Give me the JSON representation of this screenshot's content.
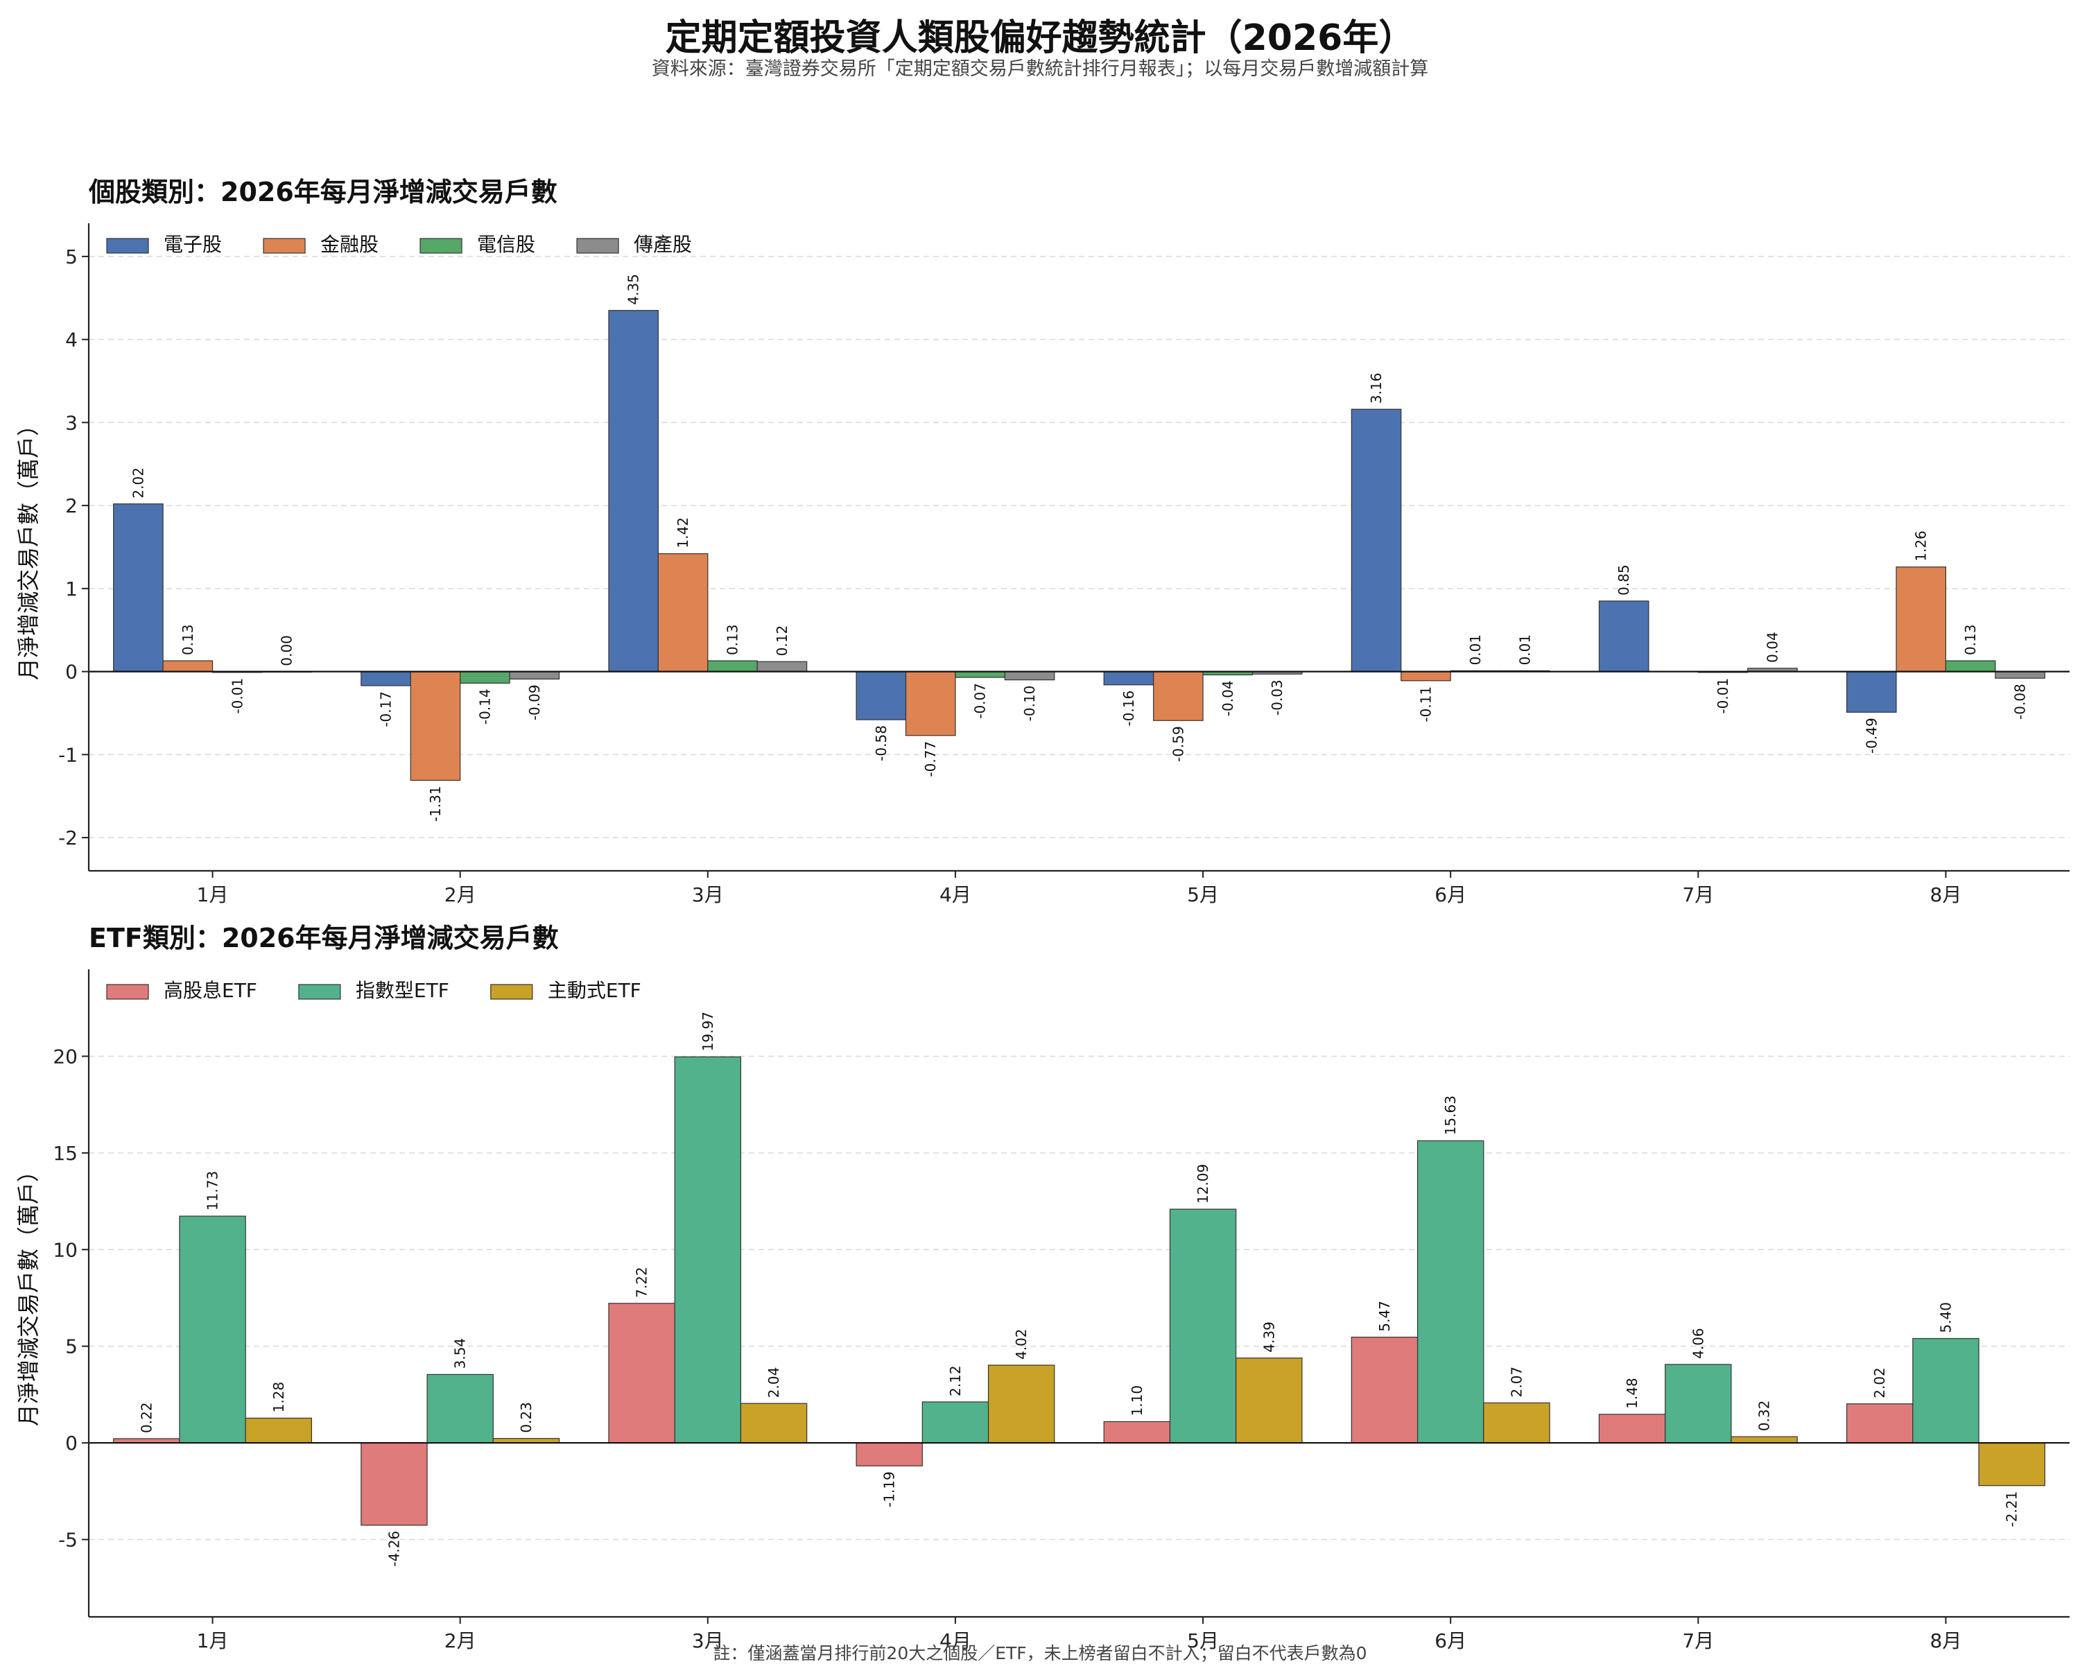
{
  "title": "定期定額投資人類股偏好趨勢統計（2026年）",
  "subtitle": "資料來源：臺灣證券交易所「定期定額交易戶數統計排行月報表」；以每月交易戶數增減額計算",
  "footnote": "註：僅涵蓋當月排行前20大之個股／ETF，未上榜者留白不計入；留白不代表戶數為0",
  "chart_data": [
    {
      "type": "bar",
      "title": "個股類別：2026年每月淨增減交易戶數",
      "ylabel": "月淨增減交易戶數（萬戶）",
      "categories": [
        "1月",
        "2月",
        "3月",
        "4月",
        "5月",
        "6月",
        "7月",
        "8月"
      ],
      "ylim": [
        -2.4,
        5.4
      ],
      "yticks": [
        -2,
        -1,
        0,
        1,
        2,
        3,
        4,
        5
      ],
      "grid": "y-dashed",
      "legend": "top-left",
      "series": [
        {
          "name": "電子股",
          "color": "#4C72B0",
          "values": [
            2.02,
            -0.17,
            4.35,
            -0.58,
            -0.16,
            3.16,
            0.85,
            -0.49
          ]
        },
        {
          "name": "金融股",
          "color": "#DD8452",
          "values": [
            0.13,
            -1.31,
            1.42,
            -0.77,
            -0.59,
            -0.11,
            null,
            1.26
          ]
        },
        {
          "name": "電信股",
          "color": "#55A868",
          "values": [
            -0.01,
            -0.14,
            0.13,
            -0.07,
            -0.04,
            0.01,
            -0.01,
            0.13
          ]
        },
        {
          "name": "傳產股",
          "color": "#8C8C8C",
          "values": [
            0.0,
            -0.09,
            0.12,
            -0.1,
            -0.03,
            0.01,
            0.04,
            -0.08
          ]
        }
      ]
    },
    {
      "type": "bar",
      "title": "ETF類別：2026年每月淨增減交易戶數",
      "ylabel": "月淨增減交易戶數（萬戶）",
      "categories": [
        "1月",
        "2月",
        "3月",
        "4月",
        "5月",
        "6月",
        "7月",
        "8月"
      ],
      "ylim": [
        -9,
        24.5
      ],
      "yticks": [
        -5,
        0,
        5,
        10,
        15,
        20
      ],
      "grid": "y-dashed",
      "legend": "top-left",
      "series": [
        {
          "name": "高股息ETF",
          "color": "#E07B7B",
          "values": [
            0.22,
            -4.26,
            7.22,
            -1.19,
            1.1,
            5.47,
            1.48,
            2.02
          ]
        },
        {
          "name": "指數型ETF",
          "color": "#52B28B",
          "values": [
            11.73,
            3.54,
            19.97,
            2.12,
            12.09,
            15.63,
            4.06,
            5.4
          ]
        },
        {
          "name": "主動式ETF",
          "color": "#C9A227",
          "values": [
            1.28,
            0.23,
            2.04,
            4.02,
            4.39,
            2.07,
            0.32,
            -2.21
          ]
        }
      ]
    }
  ]
}
